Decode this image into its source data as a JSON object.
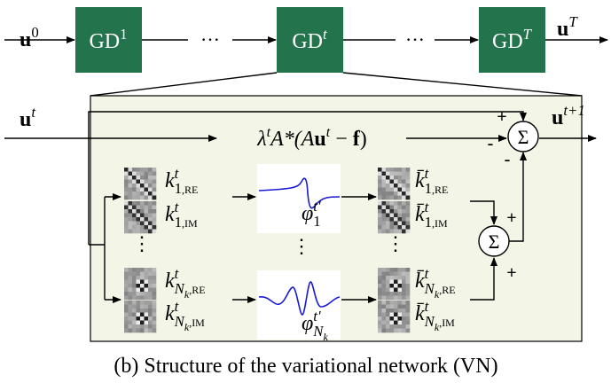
{
  "top": {
    "input": {
      "base": "u",
      "bold": true,
      "sup": "0"
    },
    "output": {
      "base": "u",
      "bold": true,
      "sup": "T"
    },
    "blocks": [
      {
        "base": "GD",
        "sup": "1"
      },
      {
        "base": "GD",
        "sup": "t"
      },
      {
        "base": "GD",
        "sup": "T"
      }
    ],
    "ellipses": [
      "···",
      "···"
    ]
  },
  "detail": {
    "input": {
      "base": "u",
      "bold": true,
      "sup": "t"
    },
    "output": {
      "base": "u",
      "bold": true,
      "sup": "t+1"
    },
    "data_term": [
      {
        "text": "λ"
      },
      {
        "sup": "t"
      },
      {
        "text": "A*(A"
      },
      {
        "bold": "u"
      },
      {
        "sup": "t"
      },
      {
        "text": " − "
      },
      {
        "bold": "f"
      },
      {
        "text": ")"
      }
    ],
    "filters": [
      {
        "base": "k",
        "sup": "t",
        "sub": "1",
        "subtail": ",RE"
      },
      {
        "base": "k",
        "sup": "t",
        "sub": "1",
        "subtail": ",IM"
      },
      {
        "base": "k",
        "sup": "t",
        "sub": "N",
        "subsub": "k",
        "subtail": ",RE"
      },
      {
        "base": "k",
        "sup": "t",
        "sub": "N",
        "subsub": "k",
        "subtail": ",IM"
      }
    ],
    "adjoint_filters": [
      {
        "base": "k̄",
        "sup": "t",
        "sub": "1",
        "subtail": ",RE"
      },
      {
        "base": "k̄",
        "sup": "t",
        "sub": "1",
        "subtail": ",IM"
      },
      {
        "base": "k̄",
        "sup": "t",
        "sub": "N",
        "subsub": "k",
        "subtail": ",RE"
      },
      {
        "base": "k̄",
        "sup": "t",
        "sub": "N",
        "subsub": "k",
        "subtail": ",IM"
      }
    ],
    "activations": [
      {
        "base": "φ",
        "sup": "t′",
        "sub": "1"
      },
      {
        "base": "φ",
        "sup": "t′",
        "sub": "N",
        "subsub": "k"
      }
    ],
    "vdots": [
      "⋮",
      "⋮",
      "⋮"
    ],
    "sum_symbol": "Σ",
    "signs": [
      "+",
      "-",
      "-",
      "+",
      "+"
    ]
  },
  "caption": "(b) Structure of the variational network (VN)"
}
